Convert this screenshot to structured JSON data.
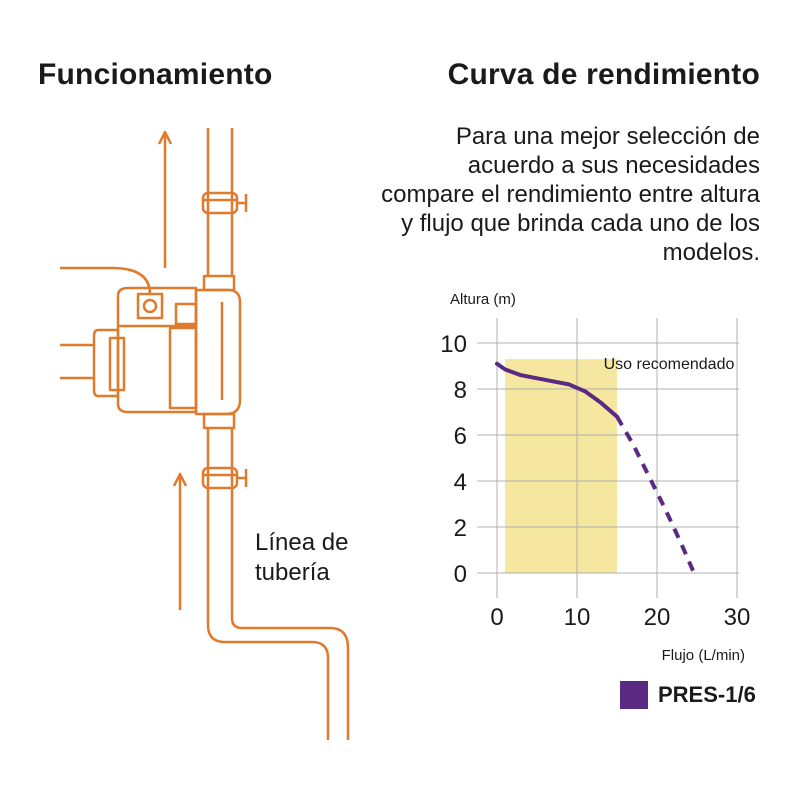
{
  "left_title": "Funcionamiento",
  "right_title": "Curva de rendimiento",
  "description": "Para una mejor selección de acuerdo a sus necesidades compare el rendimiento entre altura y flujo que brinda cada uno de los modelos.",
  "pipe_label_line1": "Línea de",
  "pipe_label_line2": "tubería",
  "colors": {
    "pipe": "#e07a2c",
    "curve": "#5a2a82",
    "recommended_zone": "#f5e6a0",
    "grid": "#b0b0b0"
  },
  "chart_data": {
    "type": "line",
    "xlabel": "Flujo (L/min)",
    "ylabel": "Altura (m)",
    "xlim": [
      0,
      30
    ],
    "ylim": [
      0,
      10
    ],
    "x_ticks": [
      "0",
      "10",
      "20",
      "30"
    ],
    "y_ticks": [
      "0",
      "2",
      "4",
      "6",
      "8",
      "10"
    ],
    "grid": true,
    "recommended_zone": {
      "label": "Uso recomendado",
      "x_start": 1,
      "x_end": 15,
      "y_top": 9.3
    },
    "series": [
      {
        "name": "PRES-1/6",
        "solid": [
          [
            0,
            9.1
          ],
          [
            1,
            8.85
          ],
          [
            3,
            8.6
          ],
          [
            6,
            8.4
          ],
          [
            9,
            8.2
          ],
          [
            11,
            7.9
          ],
          [
            13,
            7.4
          ],
          [
            15,
            6.8
          ]
        ],
        "dashed": [
          [
            15,
            6.8
          ],
          [
            17,
            5.6
          ],
          [
            19,
            4.2
          ],
          [
            21,
            2.8
          ],
          [
            23,
            1.3
          ],
          [
            24.5,
            0.1
          ]
        ]
      }
    ],
    "legend": "bottom-right"
  }
}
